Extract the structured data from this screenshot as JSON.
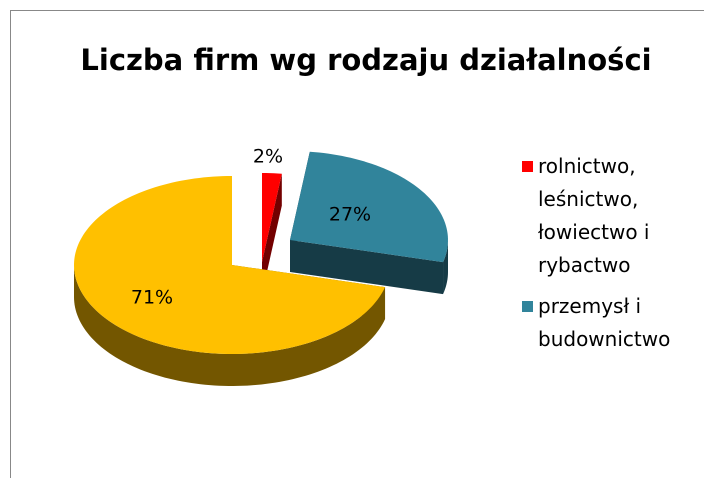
{
  "chart_data": {
    "type": "pie",
    "title": "Liczba firm wg rodzaju działalności",
    "categories": [
      "rolnictwo, leśnictwo, łowiectwo i rybactwo",
      "przemysł i budownictwo",
      null
    ],
    "values": [
      2,
      27,
      71
    ],
    "value_labels": [
      "2%",
      "27%",
      "71%"
    ],
    "colors": [
      "#ff0000",
      "#31849b",
      "#ffc000"
    ]
  }
}
